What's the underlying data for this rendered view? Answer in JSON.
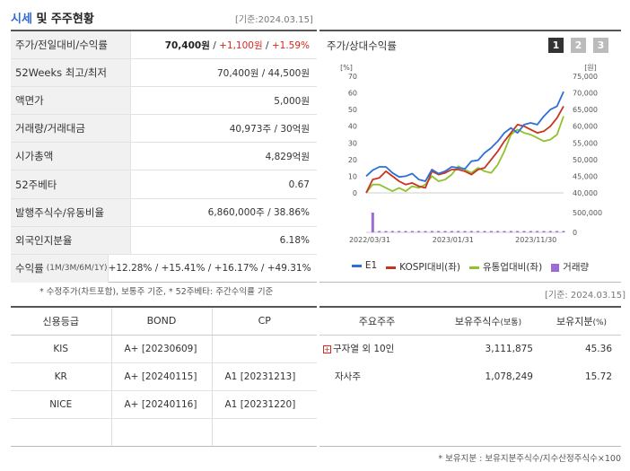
{
  "header": {
    "title_blue": "시세",
    "title_rest": " 및 주주현황",
    "date": "[기준:2024.03.15]"
  },
  "summary": {
    "rows": [
      {
        "key": "주가/전일대비/수익률",
        "price": "70,400원",
        "sep1": " / ",
        "change": "+1,100원",
        "sep2": " / ",
        "rate": "+1.59%"
      },
      {
        "key": "52Weeks 최고/최저",
        "value": "70,400원 / 44,500원"
      },
      {
        "key": "액면가",
        "value": "5,000원"
      },
      {
        "key": "거래량/거래대금",
        "value": "40,973주 / 30억원"
      },
      {
        "key": "시가총액",
        "value": "4,829억원"
      },
      {
        "key": "52주베타",
        "value": "0.67"
      },
      {
        "key": "발행주식수/유동비율",
        "value": "6,860,000주 / 38.86%"
      },
      {
        "key": "외국인지분율",
        "value": "6.18%"
      },
      {
        "key": "수익률",
        "key_sub": "(1M/3M/6M/1Y)",
        "value": "+12.28% / +15.41% / +16.17% / +49.31%"
      }
    ],
    "note": "* 수정주가(차트포함), 보통주 기준, * 52주베타: 주간수익률 기준"
  },
  "chart_panel": {
    "title": "주가/상대수익률",
    "pages": [
      "1",
      "2",
      "3"
    ],
    "active_page": "1",
    "legend": [
      {
        "name": "E1",
        "color": "#2f6fd8"
      },
      {
        "name": "KOSPI대비(좌)",
        "color": "#c8341f"
      },
      {
        "name": "유통업대비(좌)",
        "color": "#8fc22c"
      },
      {
        "name": "거래량",
        "color": "#9c6bd6"
      }
    ]
  },
  "chart_data": {
    "type": "line",
    "left_unit": "[%]",
    "right_unit": "[원]",
    "left_ticks": [
      "70",
      "60",
      "50",
      "40",
      "30",
      "20",
      "10",
      "0"
    ],
    "right_ticks": [
      "75,000",
      "70,000",
      "65,000",
      "60,000",
      "55,000",
      "50,000",
      "45,000",
      "40,000"
    ],
    "volume_ticks": [
      "500,000",
      "0"
    ],
    "x_ticks": [
      "2022/03/31",
      "2023/01/31",
      "2023/11/30"
    ],
    "ylim_left": [
      0,
      70
    ],
    "series": [
      {
        "name": "E1",
        "axis": "right",
        "color": "#2f6fd8",
        "values": [
          45000,
          46800,
          47800,
          47800,
          46000,
          44800,
          45000,
          45800,
          44000,
          43500,
          47000,
          45800,
          46500,
          47800,
          47500,
          47200,
          49500,
          49800,
          52000,
          53500,
          55500,
          58000,
          59500,
          58000,
          60500,
          61000,
          60500,
          63000,
          65000,
          66000,
          70400
        ]
      },
      {
        "name": "KOSPI대비(좌)",
        "axis": "left",
        "color": "#c8341f",
        "values": [
          0,
          8,
          9,
          13,
          10,
          7,
          5,
          6,
          4,
          3,
          13,
          11,
          12,
          14,
          14,
          13,
          11,
          14,
          15,
          20,
          25,
          31,
          36,
          41,
          40,
          38,
          36,
          37,
          40,
          45,
          52
        ]
      },
      {
        "name": "유통업대비(좌)",
        "axis": "left",
        "color": "#8fc22c",
        "values": [
          0,
          5,
          5,
          3,
          1,
          3,
          1,
          4,
          3,
          5,
          10,
          7,
          8,
          11,
          16,
          14,
          12,
          15,
          13,
          12,
          17,
          25,
          35,
          38,
          36,
          35,
          33,
          31,
          32,
          35,
          46
        ]
      },
      {
        "name": "거래량",
        "axis": "volume",
        "color": "#9c6bd6",
        "values": [
          0,
          600000,
          20000,
          15000,
          10000,
          12000,
          8000,
          9000,
          10000,
          15000,
          20000,
          10000,
          12000,
          9000,
          10000,
          12000,
          14000,
          16000,
          22000,
          20000,
          12000,
          10000,
          40000,
          12000,
          15000,
          18000,
          20000,
          15000,
          18000,
          25000,
          30000
        ]
      }
    ]
  },
  "right_date": "[기준: 2024.03.15]",
  "credit": {
    "headers": [
      "신용등급",
      "BOND",
      "CP"
    ],
    "rows": [
      [
        "KIS",
        "A+  [20230609]",
        ""
      ],
      [
        "KR",
        "A+  [20240115]",
        "A1  [20231213]"
      ],
      [
        "NICE",
        "A+  [20240116]",
        "A1  [20231220]"
      ],
      [
        "",
        "",
        ""
      ]
    ]
  },
  "holders": {
    "headers": [
      "주요주주",
      "보유주식수",
      "(보통)",
      "보유지분",
      "(%)"
    ],
    "rows": [
      {
        "name": "구자열 외 10인",
        "expand": "+",
        "shares": "3,111,875",
        "pct": "45.36"
      },
      {
        "name": "자사주",
        "expand": "",
        "shares": "1,078,249",
        "pct": "15.72"
      },
      {
        "name": "",
        "expand": "",
        "shares": "",
        "pct": ""
      },
      {
        "name": "",
        "expand": "",
        "shares": "",
        "pct": ""
      }
    ],
    "note": "* 보유지분 : 보유지분주식수/지수산정주식수×100"
  }
}
